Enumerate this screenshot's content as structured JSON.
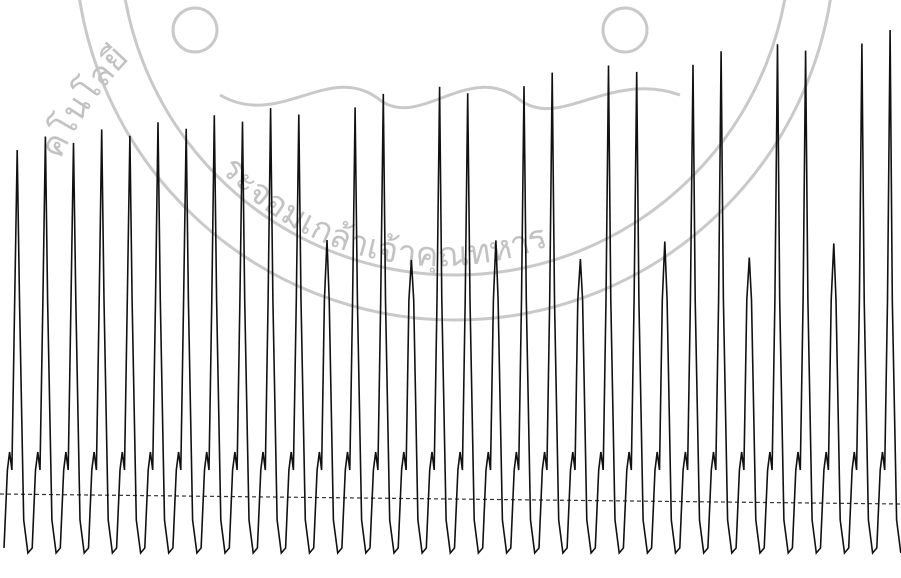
{
  "watermark": {
    "text_left": "คโนโลยี",
    "text_bottom": "ระจอมเกล้าเจ้าคุณทหาร"
  }
}
